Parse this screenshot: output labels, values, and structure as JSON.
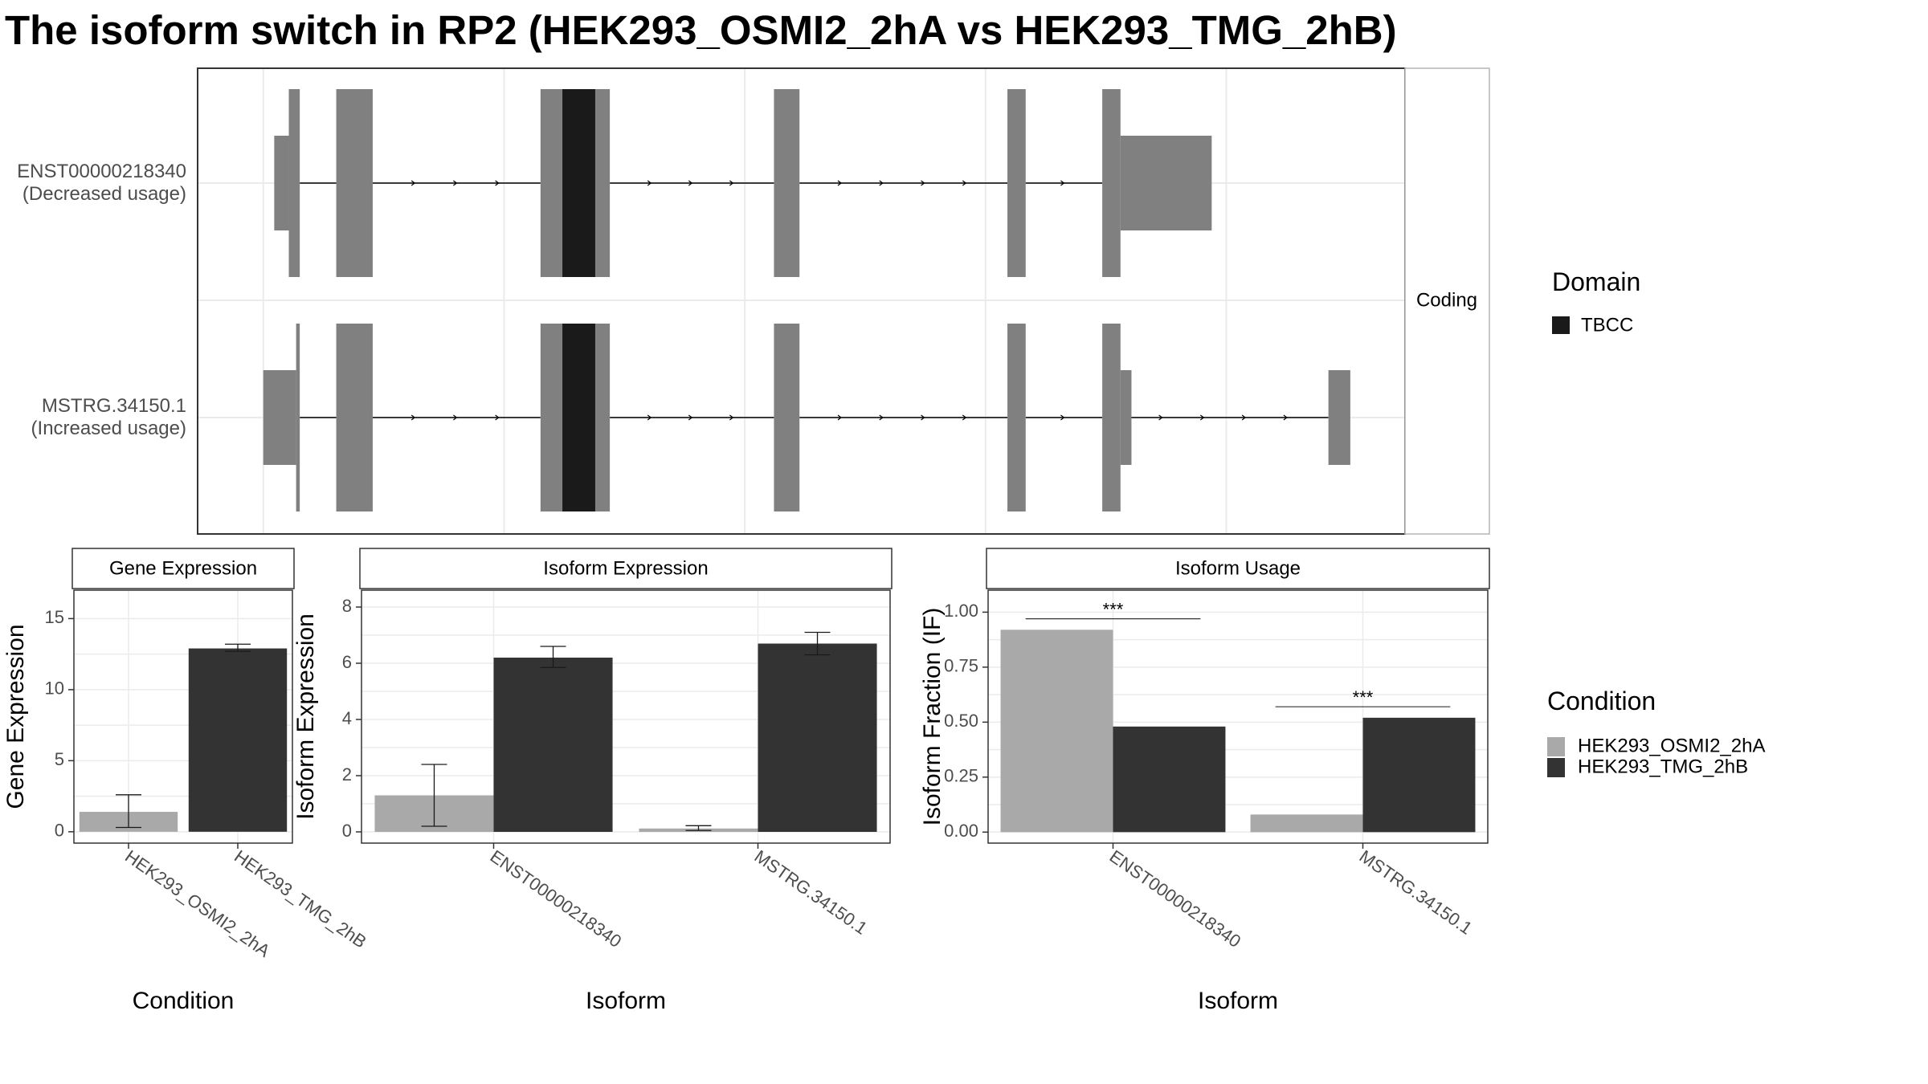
{
  "title": "The isoform switch in RP2 (HEK293_OSMI2_2hA vs HEK293_TMG_2hB)",
  "structure": {
    "facet_label": "Coding",
    "isoforms": [
      {
        "id": "ENST00000218340",
        "usage": "(Decreased usage)",
        "exons": [
          [
            0.15,
            0.5
          ],
          [
            1.0,
            1.5
          ],
          [
            3.8,
            4.75
          ],
          [
            7.0,
            7.35
          ],
          [
            10.2,
            10.45
          ],
          [
            11.5,
            11.75
          ]
        ],
        "utr": [
          [
            0.15,
            0.35
          ],
          [
            11.75,
            13.0
          ]
        ],
        "domain": [
          [
            4.1,
            4.55
          ]
        ]
      },
      {
        "id": "MSTRG.34150.1",
        "usage": "(Increased usage)",
        "exons": [
          [
            0.0,
            0.5
          ],
          [
            1.0,
            1.5
          ],
          [
            3.8,
            4.75
          ],
          [
            7.0,
            7.35
          ],
          [
            10.2,
            10.45
          ],
          [
            11.5,
            11.75
          ],
          [
            14.6,
            14.9
          ]
        ],
        "utr": [
          [
            0.0,
            0.45
          ],
          [
            11.75,
            11.9
          ],
          [
            14.6,
            14.9
          ]
        ],
        "domain": [
          [
            4.1,
            4.55
          ]
        ]
      }
    ]
  },
  "legend_domain": {
    "title": "Domain",
    "items": [
      {
        "label": "TBCC",
        "color": "#1a1a1a"
      }
    ]
  },
  "legend_condition": {
    "title": "Condition",
    "items": [
      {
        "label": "HEK293_OSMI2_2hA",
        "color": "#a9a9a9"
      },
      {
        "label": "HEK293_TMG_2hB",
        "color": "#333333"
      }
    ]
  },
  "chart_data": [
    {
      "type": "bar",
      "title": "Gene Expression",
      "xlabel": "Condition",
      "ylabel": "Gene Expression",
      "categories": [
        "HEK293_OSMI2_2hA",
        "HEK293_TMG_2hB"
      ],
      "series": [
        {
          "name": "HEK293_OSMI2_2hA",
          "values": [
            1.4,
            null
          ],
          "err": [
            [
              0.3,
              2.6
            ],
            null
          ]
        },
        {
          "name": "HEK293_TMG_2hB",
          "values": [
            null,
            12.9
          ],
          "err": [
            null,
            [
              12.7,
              13.2
            ]
          ]
        }
      ],
      "ylim": [
        -0.8,
        17.0
      ],
      "yticks": [
        0,
        5,
        10,
        15
      ]
    },
    {
      "type": "bar",
      "title": "Isoform Expression",
      "xlabel": "Isoform",
      "ylabel": "Isoform Expression",
      "categories": [
        "ENST00000218340",
        "MSTRG.34150.1"
      ],
      "series": [
        {
          "name": "HEK293_OSMI2_2hA",
          "values": [
            1.3,
            0.12
          ],
          "err": [
            [
              0.2,
              2.4
            ],
            [
              0.05,
              0.22
            ]
          ]
        },
        {
          "name": "HEK293_TMG_2hB",
          "values": [
            6.2,
            6.7
          ],
          "err": [
            [
              5.85,
              6.6
            ],
            [
              6.3,
              7.1
            ]
          ]
        }
      ],
      "ylim": [
        -0.4,
        8.6
      ],
      "yticks": [
        0,
        2,
        4,
        6,
        8
      ]
    },
    {
      "type": "bar",
      "title": "Isoform Usage",
      "xlabel": "Isoform",
      "ylabel": "Isoform Fraction (IF)",
      "categories": [
        "ENST00000218340",
        "MSTRG.34150.1"
      ],
      "series": [
        {
          "name": "HEK293_OSMI2_2hA",
          "values": [
            0.92,
            0.08
          ]
        },
        {
          "name": "HEK293_TMG_2hB",
          "values": [
            0.48,
            0.52
          ]
        }
      ],
      "significance": [
        "***",
        "***"
      ],
      "ylim": [
        -0.05,
        1.1
      ],
      "yticks": [
        0.0,
        0.25,
        0.5,
        0.75,
        1.0
      ],
      "ytick_labels": [
        "0.00",
        "0.25",
        "0.50",
        "0.75",
        "1.00"
      ]
    }
  ]
}
